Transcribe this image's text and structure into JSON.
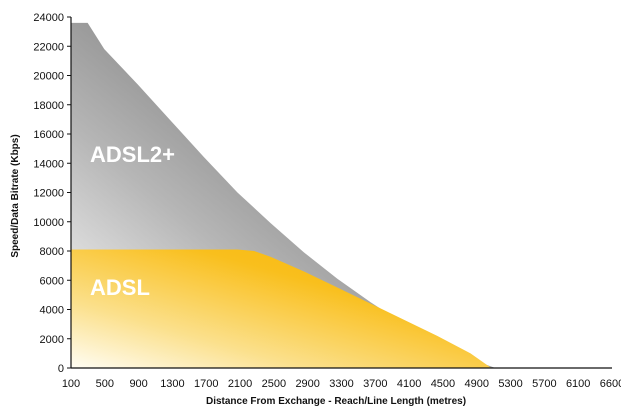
{
  "chart_data": {
    "type": "area",
    "title": "",
    "xlabel": "Distance From Exchange - Reach/Line Length (metres)",
    "ylabel": "Speed/Data Bitrate (Kbps)",
    "xlim": [
      100,
      6600
    ],
    "ylim": [
      0,
      24000
    ],
    "xticks": [
      "100",
      "500",
      "900",
      "1300",
      "1700",
      "2100",
      "2500",
      "2900",
      "3300",
      "3700",
      "4100",
      "4500",
      "4900",
      "5300",
      "5700",
      "6100",
      "6600"
    ],
    "yticks": [
      "0",
      "2000",
      "4000",
      "6000",
      "8000",
      "10000",
      "12000",
      "14000",
      "16000",
      "18000",
      "20000",
      "22000",
      "24000"
    ],
    "grid": false,
    "series": [
      {
        "name": "ADSL2+",
        "color": "#4a4a4a",
        "x": [
          100,
          300,
          500,
          900,
          1300,
          1700,
          2100,
          2500,
          2900,
          3300,
          3700,
          4100,
          4500,
          4900,
          5200
        ],
        "values": [
          23600,
          23600,
          21800,
          19400,
          16900,
          14400,
          12000,
          9900,
          7900,
          6100,
          4500,
          3000,
          1700,
          600,
          0
        ]
      },
      {
        "name": "ADSL",
        "color": "#f9b900",
        "x": [
          100,
          500,
          900,
          1300,
          1700,
          2100,
          2300,
          2500,
          2900,
          3300,
          3700,
          4100,
          4500,
          4900,
          5150
        ],
        "values": [
          8100,
          8100,
          8100,
          8100,
          8100,
          8100,
          8000,
          7600,
          6600,
          5500,
          4400,
          3300,
          2200,
          1000,
          0
        ]
      }
    ],
    "series_labels": [
      "ADSL2+",
      "ADSL"
    ]
  }
}
